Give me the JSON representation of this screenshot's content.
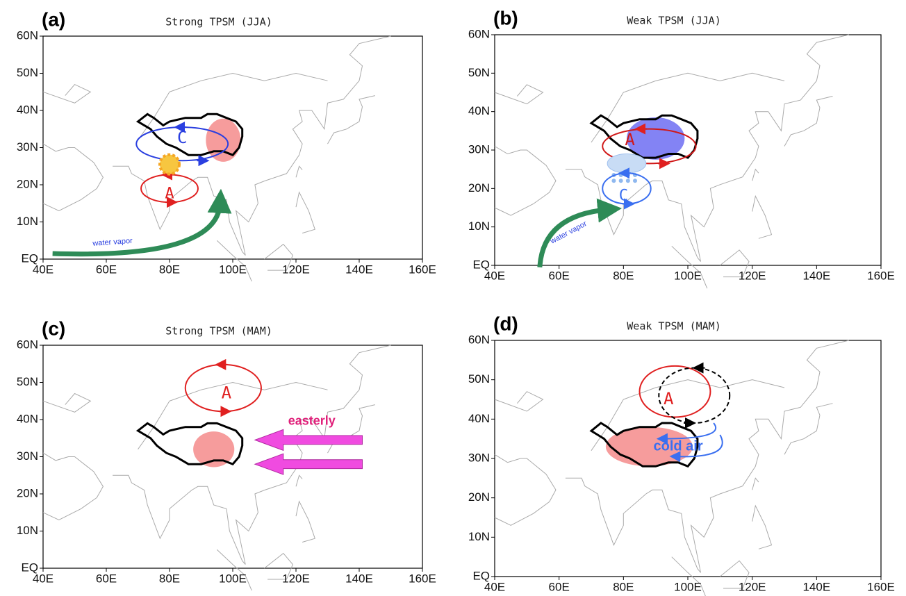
{
  "panels": [
    {
      "label": "(a)",
      "title": "Strong TPSM (JJA)",
      "annotations": [
        "C",
        "A",
        "water vapor"
      ]
    },
    {
      "label": "(b)",
      "title": "Weak TPSM (JJA)",
      "annotations": [
        "A",
        "C",
        "water vapor"
      ]
    },
    {
      "label": "(c)",
      "title": "Strong TPSM (MAM)",
      "annotations": [
        "A",
        "easterly"
      ]
    },
    {
      "label": "(d)",
      "title": "Weak TPSM (MAM)",
      "annotations": [
        "A",
        "cold air"
      ]
    }
  ],
  "lat_labels": [
    "EQ",
    "10N",
    "20N",
    "30N",
    "40N",
    "50N",
    "60N"
  ],
  "lon_labels": [
    "40E",
    "60E",
    "80E",
    "100E",
    "120E",
    "140E",
    "160E"
  ]
}
